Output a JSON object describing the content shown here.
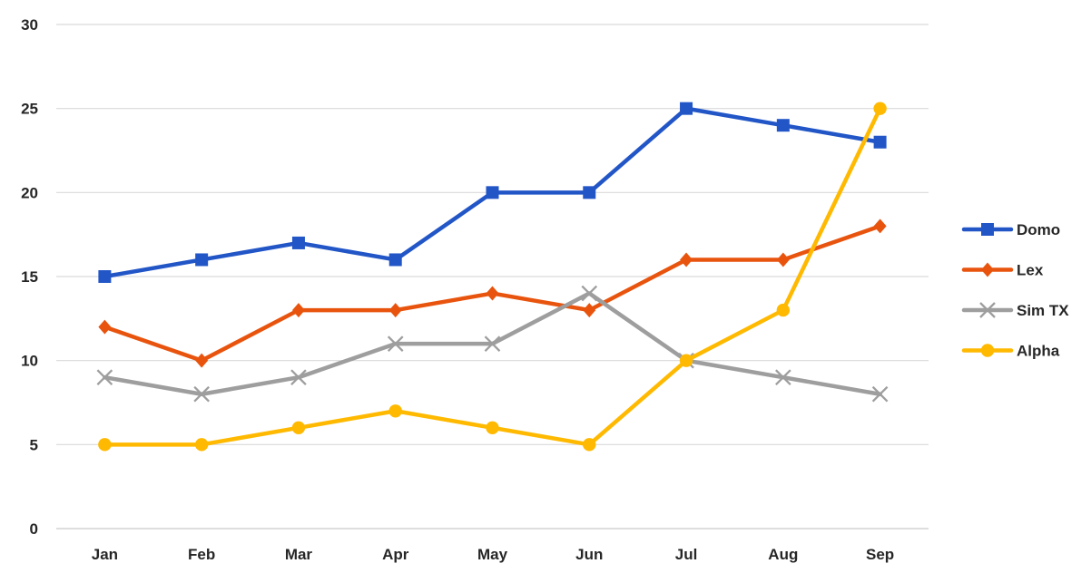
{
  "chart_data": {
    "type": "line",
    "title": "",
    "xlabel": "",
    "ylabel": "",
    "categories": [
      "Jan",
      "Feb",
      "Mar",
      "Apr",
      "May",
      "Jun",
      "Jul",
      "Aug",
      "Sep"
    ],
    "series": [
      {
        "name": "Domo",
        "marker": "square",
        "color": "#2256C7",
        "values": [
          15,
          16,
          17,
          16,
          20,
          20,
          25,
          24,
          23
        ]
      },
      {
        "name": "Lex",
        "marker": "diamond",
        "color": "#E8540E",
        "values": [
          12,
          10,
          13,
          13,
          14,
          13,
          16,
          16,
          18
        ]
      },
      {
        "name": "Sim TX",
        "marker": "x",
        "color": "#9E9E9E",
        "values": [
          9,
          8,
          9,
          11,
          11,
          14,
          10,
          9,
          8
        ]
      },
      {
        "name": "Alpha",
        "marker": "circle",
        "color": "#FFB900",
        "values": [
          5,
          5,
          6,
          7,
          6,
          5,
          10,
          13,
          25
        ]
      }
    ],
    "y_ticks": [
      0,
      5,
      10,
      15,
      20,
      25,
      30
    ],
    "ylim": [
      0,
      30
    ],
    "grid": true,
    "legend_position": "right"
  },
  "styles": {
    "background": "#FFFFFF",
    "grid_color": "#D9D9D9",
    "axis_color": "#C9C9C9",
    "text_color": "#262626"
  }
}
